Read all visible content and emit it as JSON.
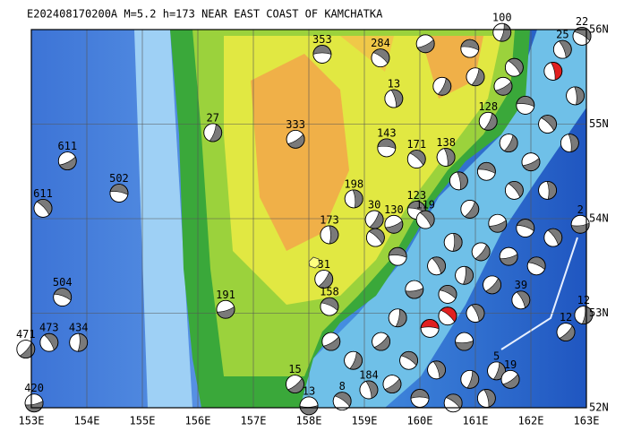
{
  "title": "E202408170200A M=5.2 h=173 NEAR EAST COAST OF KAMCHATKA",
  "map": {
    "lon_range": [
      153,
      163
    ],
    "lat_range": [
      52,
      56
    ],
    "xticks": [
      {
        "value": 153,
        "label": "153E"
      },
      {
        "value": 154,
        "label": "154E"
      },
      {
        "value": 155,
        "label": "155E"
      },
      {
        "value": 156,
        "label": "156E"
      },
      {
        "value": 157,
        "label": "157E"
      },
      {
        "value": 158,
        "label": "158E"
      },
      {
        "value": 159,
        "label": "159E"
      },
      {
        "value": 160,
        "label": "160E"
      },
      {
        "value": 161,
        "label": "161E"
      },
      {
        "value": 162,
        "label": "162E"
      },
      {
        "value": 163,
        "label": "163E"
      }
    ],
    "yticks": [
      {
        "value": 56,
        "label": "56N"
      },
      {
        "value": 55,
        "label": "55N"
      },
      {
        "value": 54,
        "label": "54N"
      },
      {
        "value": 53,
        "label": "53N"
      },
      {
        "value": 52,
        "label": "52N"
      }
    ],
    "ball_color": "#7a7a7a",
    "events": [
      {
        "lon": 158.24,
        "lat": 55.74,
        "label": "353"
      },
      {
        "lon": 159.29,
        "lat": 55.7,
        "label": "284"
      },
      {
        "lon": 159.53,
        "lat": 55.27,
        "label": "13"
      },
      {
        "lon": 156.27,
        "lat": 54.91,
        "label": "27"
      },
      {
        "lon": 157.76,
        "lat": 54.84,
        "label": "333"
      },
      {
        "lon": 159.4,
        "lat": 54.75,
        "label": "143"
      },
      {
        "lon": 159.94,
        "lat": 54.63,
        "label": "171"
      },
      {
        "lon": 160.47,
        "lat": 54.65,
        "label": "138"
      },
      {
        "lon": 161.23,
        "lat": 55.03,
        "label": "128"
      },
      {
        "lon": 153.65,
        "lat": 54.61,
        "label": "611"
      },
      {
        "lon": 154.58,
        "lat": 54.27,
        "label": "502"
      },
      {
        "lon": 153.21,
        "lat": 54.11,
        "label": "611"
      },
      {
        "lon": 158.81,
        "lat": 54.21,
        "label": "198"
      },
      {
        "lon": 159.18,
        "lat": 53.99,
        "label": "30"
      },
      {
        "lon": 159.53,
        "lat": 53.94,
        "label": "130"
      },
      {
        "lon": 159.94,
        "lat": 54.09,
        "label": "123"
      },
      {
        "lon": 160.1,
        "lat": 53.99,
        "label": "119"
      },
      {
        "lon": 158.37,
        "lat": 53.83,
        "label": "173"
      },
      {
        "lon": 158.27,
        "lat": 53.36,
        "label": "31"
      },
      {
        "lon": 156.5,
        "lat": 53.04,
        "label": "191"
      },
      {
        "lon": 153.56,
        "lat": 53.17,
        "label": "504"
      },
      {
        "lon": 153.32,
        "lat": 52.69,
        "label": "473"
      },
      {
        "lon": 153.85,
        "lat": 52.69,
        "label": "434"
      },
      {
        "lon": 152.9,
        "lat": 52.62,
        "label": "471"
      },
      {
        "lon": 153.05,
        "lat": 52.05,
        "label": "420"
      },
      {
        "lon": 158.37,
        "lat": 53.07,
        "label": "158"
      },
      {
        "lon": 161.82,
        "lat": 53.14,
        "label": "39"
      },
      {
        "lon": 162.95,
        "lat": 52.98,
        "label": "12"
      },
      {
        "lon": 162.63,
        "lat": 52.8,
        "label": "12"
      },
      {
        "lon": 162.89,
        "lat": 53.94,
        "label": "2"
      },
      {
        "lon": 162.92,
        "lat": 55.93,
        "label": "22"
      },
      {
        "lon": 162.57,
        "lat": 55.79,
        "label": "25"
      },
      {
        "lon": 161.48,
        "lat": 55.97,
        "label": "100"
      },
      {
        "lon": 157.75,
        "lat": 52.25,
        "label": "15"
      },
      {
        "lon": 158.0,
        "lat": 52.02,
        "label": "13"
      },
      {
        "lon": 158.6,
        "lat": 52.07,
        "label": "8"
      },
      {
        "lon": 159.08,
        "lat": 52.19,
        "label": "184"
      },
      {
        "lon": 161.38,
        "lat": 52.39,
        "label": "5"
      },
      {
        "lon": 161.63,
        "lat": 52.3,
        "label": "19"
      },
      {
        "lon": 160.18,
        "lat": 52.84,
        "label": null,
        "color": "#e02020"
      },
      {
        "lon": 160.5,
        "lat": 52.97,
        "label": null,
        "color": "#e02020"
      },
      {
        "lon": 162.4,
        "lat": 55.56,
        "label": null,
        "color": "#e02020"
      },
      {
        "lon": 161.0,
        "lat": 55.5,
        "label": null
      },
      {
        "lon": 161.5,
        "lat": 55.4,
        "label": null
      },
      {
        "lon": 161.9,
        "lat": 55.2,
        "label": null
      },
      {
        "lon": 162.3,
        "lat": 55.0,
        "label": null
      },
      {
        "lon": 162.7,
        "lat": 54.8,
        "label": null
      },
      {
        "lon": 161.6,
        "lat": 54.8,
        "label": null
      },
      {
        "lon": 162.0,
        "lat": 54.6,
        "label": null
      },
      {
        "lon": 161.2,
        "lat": 54.5,
        "label": null
      },
      {
        "lon": 161.7,
        "lat": 54.3,
        "label": null
      },
      {
        "lon": 162.3,
        "lat": 54.3,
        "label": null
      },
      {
        "lon": 160.9,
        "lat": 54.1,
        "label": null
      },
      {
        "lon": 161.4,
        "lat": 53.95,
        "label": null
      },
      {
        "lon": 161.9,
        "lat": 53.9,
        "label": null
      },
      {
        "lon": 162.4,
        "lat": 53.8,
        "label": null
      },
      {
        "lon": 160.6,
        "lat": 53.75,
        "label": null
      },
      {
        "lon": 161.1,
        "lat": 53.65,
        "label": null
      },
      {
        "lon": 161.6,
        "lat": 53.6,
        "label": null
      },
      {
        "lon": 162.1,
        "lat": 53.5,
        "label": null
      },
      {
        "lon": 160.3,
        "lat": 53.5,
        "label": null
      },
      {
        "lon": 160.8,
        "lat": 53.4,
        "label": null
      },
      {
        "lon": 161.3,
        "lat": 53.3,
        "label": null
      },
      {
        "lon": 159.9,
        "lat": 53.25,
        "label": null
      },
      {
        "lon": 160.5,
        "lat": 53.2,
        "label": null
      },
      {
        "lon": 161.0,
        "lat": 53.0,
        "label": null
      },
      {
        "lon": 159.6,
        "lat": 52.95,
        "label": null
      },
      {
        "lon": 159.3,
        "lat": 52.7,
        "label": null
      },
      {
        "lon": 160.8,
        "lat": 52.7,
        "label": null
      },
      {
        "lon": 159.8,
        "lat": 52.5,
        "label": null
      },
      {
        "lon": 160.3,
        "lat": 52.4,
        "label": null
      },
      {
        "lon": 160.9,
        "lat": 52.3,
        "label": null
      },
      {
        "lon": 159.5,
        "lat": 52.25,
        "label": null
      },
      {
        "lon": 160.0,
        "lat": 52.1,
        "label": null
      },
      {
        "lon": 160.6,
        "lat": 52.05,
        "label": null
      },
      {
        "lon": 161.2,
        "lat": 52.1,
        "label": null
      },
      {
        "lon": 158.8,
        "lat": 52.5,
        "label": null
      },
      {
        "lon": 158.4,
        "lat": 52.7,
        "label": null
      },
      {
        "lon": 159.6,
        "lat": 53.6,
        "label": null
      },
      {
        "lon": 159.2,
        "lat": 53.8,
        "label": null
      },
      {
        "lon": 160.7,
        "lat": 54.4,
        "label": null
      },
      {
        "lon": 160.4,
        "lat": 55.4,
        "label": null
      },
      {
        "lon": 160.1,
        "lat": 55.85,
        "label": null
      },
      {
        "lon": 160.9,
        "lat": 55.8,
        "label": null
      },
      {
        "lon": 161.7,
        "lat": 55.6,
        "label": null
      },
      {
        "lon": 162.8,
        "lat": 55.3,
        "label": null
      }
    ]
  }
}
